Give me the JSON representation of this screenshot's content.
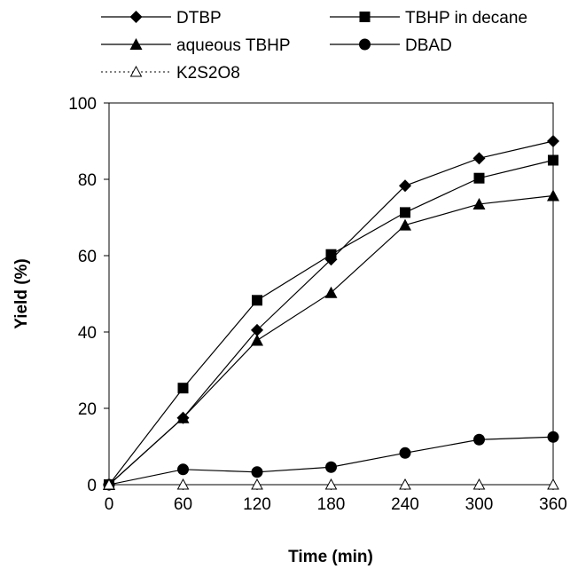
{
  "chart_data": {
    "type": "line",
    "xlabel": "Time (min)",
    "ylabel": "Yield (%)",
    "xlim": [
      0,
      360
    ],
    "ylim": [
      0,
      100
    ],
    "x_ticks": [
      "0",
      "60",
      "120",
      "180",
      "240",
      "300",
      "360"
    ],
    "y_ticks": [
      "0",
      "20",
      "40",
      "60",
      "80",
      "100"
    ],
    "grid": false,
    "legend_position": "top",
    "series": [
      {
        "name": "DTBP",
        "marker": "diamond",
        "line": "solid",
        "x": [
          0,
          60,
          120,
          180,
          240,
          300,
          360
        ],
        "values": [
          0,
          17.5,
          40.5,
          59,
          78.3,
          85.5,
          90
        ]
      },
      {
        "name": "TBHP in decane",
        "marker": "square",
        "line": "solid",
        "x": [
          0,
          60,
          120,
          180,
          240,
          300,
          360
        ],
        "values": [
          0,
          25.3,
          48.3,
          60.3,
          71.3,
          80.3,
          85
        ]
      },
      {
        "name": "aqueous TBHP",
        "marker": "triangle",
        "line": "solid",
        "x": [
          0,
          60,
          120,
          180,
          240,
          300,
          360
        ],
        "values": [
          0,
          17.5,
          37.8,
          50.3,
          68,
          73.5,
          75.7
        ]
      },
      {
        "name": "DBAD",
        "marker": "circle",
        "line": "solid",
        "x": [
          0,
          60,
          120,
          180,
          240,
          300,
          360
        ],
        "values": [
          0,
          4,
          3.3,
          4.6,
          8.3,
          11.8,
          12.5
        ]
      },
      {
        "name": "K2S2O8",
        "marker": "triangle-open",
        "line": "dotted",
        "x": [
          0,
          60,
          120,
          180,
          240,
          300,
          360
        ],
        "values": [
          0,
          0,
          0,
          0,
          0,
          0,
          0
        ]
      }
    ]
  }
}
